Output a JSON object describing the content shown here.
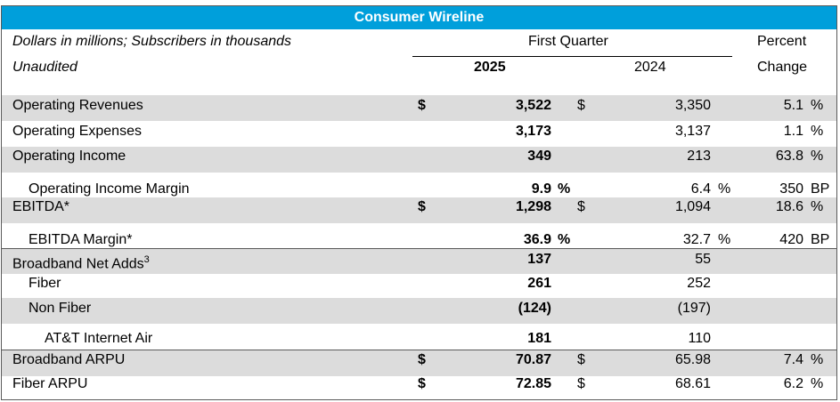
{
  "title": "Consumer Wireline",
  "header": {
    "note_line1": "Dollars in millions; Subscribers in thousands",
    "note_line2": "Unaudited",
    "period": "First Quarter",
    "col_2025": "2025",
    "col_2024": "2024",
    "pct_line1": "Percent",
    "pct_line2": "Change"
  },
  "rows": [
    {
      "label": "Operating Revenues",
      "cur25": "$",
      "v25": "3,522",
      "u25": "",
      "cur24": "$",
      "v24": "3,350",
      "u24": "",
      "chg": "5.1",
      "cu": "%"
    },
    {
      "label": "Operating Expenses",
      "cur25": "",
      "v25": "3,173",
      "u25": "",
      "cur24": "",
      "v24": "3,137",
      "u24": "",
      "chg": "1.1",
      "cu": "%"
    },
    {
      "label": "Operating Income",
      "cur25": "",
      "v25": "349",
      "u25": "",
      "cur24": "",
      "v24": "213",
      "u24": "",
      "chg": "63.8",
      "cu": "%"
    },
    {
      "label": "Operating Income Margin",
      "cur25": "",
      "v25": "9.9",
      "u25": "%",
      "cur24": "",
      "v24": "6.4",
      "u24": "%",
      "chg": "350",
      "cu": "BP"
    },
    {
      "label": "EBITDA*",
      "cur25": "$",
      "v25": "1,298",
      "u25": "",
      "cur24": "$",
      "v24": "1,094",
      "u24": "",
      "chg": "18.6",
      "cu": "%"
    },
    {
      "label": "EBITDA Margin*",
      "cur25": "",
      "v25": "36.9",
      "u25": "%",
      "cur24": "",
      "v24": "32.7",
      "u24": "%",
      "chg": "420",
      "cu": "BP"
    },
    {
      "label": "Broadband Net Adds",
      "sup": "3",
      "cur25": "",
      "v25": "137",
      "u25": "",
      "cur24": "",
      "v24": "55",
      "u24": "",
      "chg": "",
      "cu": ""
    },
    {
      "label": "Fiber",
      "cur25": "",
      "v25": "261",
      "u25": "",
      "cur24": "",
      "v24": "252",
      "u24": "",
      "chg": "",
      "cu": ""
    },
    {
      "label": "Non Fiber",
      "cur25": "",
      "v25": "(124)",
      "u25": "",
      "cur24": "",
      "v24": "(197)",
      "u24": "",
      "chg": "",
      "cu": ""
    },
    {
      "label": "AT&T Internet Air",
      "cur25": "",
      "v25": "181",
      "u25": "",
      "cur24": "",
      "v24": "110",
      "u24": "",
      "chg": "",
      "cu": ""
    },
    {
      "label": "Broadband ARPU",
      "cur25": "$",
      "v25": "70.87",
      "u25": "",
      "cur24": "$",
      "v24": "65.98",
      "u24": "",
      "chg": "7.4",
      "cu": "%"
    },
    {
      "label": "Fiber ARPU",
      "cur25": "$",
      "v25": "72.85",
      "u25": "",
      "cur24": "$",
      "v24": "68.61",
      "u24": "",
      "chg": "6.2",
      "cu": "%"
    }
  ]
}
